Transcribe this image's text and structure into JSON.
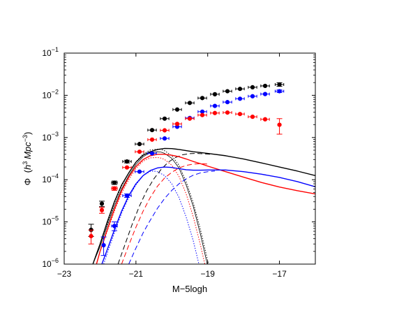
{
  "chart_data": {
    "type": "scatter",
    "xlabel": "M−5logh",
    "ylabel": {
      "text": "Φ",
      "open": "(",
      "h": "h",
      "h_exp": "3",
      "mpc": "Mpc",
      "mpc_exp": "−3",
      "close": ")"
    },
    "xlim": [
      -23,
      -16
    ],
    "ylim": [
      1e-06,
      0.1
    ],
    "yscale": "log",
    "grid": false,
    "legend": "none",
    "x_ticks": [
      {
        "value": -23,
        "label": "−23"
      },
      {
        "value": -21,
        "label": "−21"
      },
      {
        "value": -19,
        "label": "−19"
      },
      {
        "value": -17,
        "label": "−17"
      }
    ],
    "y_ticks": [
      {
        "value": 1e-06,
        "base": "10",
        "exp": "−6"
      },
      {
        "value": 1e-05,
        "base": "10",
        "exp": "−5"
      },
      {
        "value": 0.0001,
        "base": "10",
        "exp": "−4"
      },
      {
        "value": 0.001,
        "base": "10",
        "exp": "−3"
      },
      {
        "value": 0.01,
        "base": "10",
        "exp": "−2"
      },
      {
        "value": 0.1,
        "base": "10",
        "exp": "−1"
      }
    ],
    "point_series": [
      {
        "color": "#000000",
        "points": [
          {
            "x": -22.25,
            "y": 6.5e-06,
            "ylo": 4.5e-06,
            "yhi": 8.8e-06,
            "xerr": 0
          },
          {
            "x": -21.95,
            "y": 2.7e-05,
            "ylo": 2.3e-05,
            "yhi": 3.1e-05,
            "xerr": 0
          },
          {
            "x": -21.6,
            "y": 8.5e-05,
            "ylo": 7.7e-05,
            "yhi": 9.3e-05,
            "xerr": 0.08
          },
          {
            "x": -21.25,
            "y": 0.00027,
            "ylo": 0.00025,
            "yhi": 0.00029,
            "xerr": 0.12
          },
          {
            "x": -20.9,
            "y": 0.0007,
            "ylo": 0.00067,
            "yhi": 0.00073,
            "xerr": 0.12
          },
          {
            "x": -20.55,
            "y": 0.0015,
            "ylo": 0.00146,
            "yhi": 0.00154,
            "xerr": 0.12
          },
          {
            "x": -20.2,
            "y": 0.0028,
            "ylo": 0.0027,
            "yhi": 0.0029,
            "xerr": 0.12
          },
          {
            "x": -19.85,
            "y": 0.0046,
            "ylo": 0.0045,
            "yhi": 0.0047,
            "xerr": 0.12
          },
          {
            "x": -19.5,
            "y": 0.0066,
            "ylo": 0.0065,
            "yhi": 0.0067,
            "xerr": 0.12
          },
          {
            "x": -19.15,
            "y": 0.0086,
            "ylo": 0.0085,
            "yhi": 0.0087,
            "xerr": 0.12
          },
          {
            "x": -18.8,
            "y": 0.0106,
            "ylo": 0.0105,
            "yhi": 0.0107,
            "xerr": 0.12
          },
          {
            "x": -18.45,
            "y": 0.0125,
            "ylo": 0.0124,
            "yhi": 0.0126,
            "xerr": 0.12
          },
          {
            "x": -18.1,
            "y": 0.0142,
            "ylo": 0.014,
            "yhi": 0.0144,
            "xerr": 0.12
          },
          {
            "x": -17.75,
            "y": 0.0155,
            "ylo": 0.0152,
            "yhi": 0.0158,
            "xerr": 0.12
          },
          {
            "x": -17.4,
            "y": 0.0167,
            "ylo": 0.0163,
            "yhi": 0.0171,
            "xerr": 0.12
          },
          {
            "x": -17.0,
            "y": 0.018,
            "ylo": 0.0163,
            "yhi": 0.0199,
            "xerr": 0.12
          }
        ]
      },
      {
        "color": "#0000ff",
        "points": [
          {
            "x": -21.9,
            "y": 2.8e-06,
            "ylo": 1.6e-06,
            "yhi": 4.4e-06,
            "xerr": 0
          },
          {
            "x": -21.6,
            "y": 8e-06,
            "ylo": 6.2e-06,
            "yhi": 1e-05,
            "xerr": 0.08
          },
          {
            "x": -21.25,
            "y": 4.2e-05,
            "ylo": 3.8e-05,
            "yhi": 4.6e-05,
            "xerr": 0.12
          },
          {
            "x": -20.9,
            "y": 0.000155,
            "ylo": 0.000148,
            "yhi": 0.000162,
            "xerr": 0.12
          },
          {
            "x": -20.55,
            "y": 0.00042,
            "ylo": 0.000405,
            "yhi": 0.000435,
            "xerr": 0.12
          },
          {
            "x": -20.2,
            "y": 0.00095,
            "ylo": 0.00092,
            "yhi": 0.00098,
            "xerr": 0.12
          },
          {
            "x": -19.85,
            "y": 0.0018,
            "ylo": 0.00175,
            "yhi": 0.00185,
            "xerr": 0.12
          },
          {
            "x": -19.5,
            "y": 0.0029,
            "ylo": 0.00284,
            "yhi": 0.00296,
            "xerr": 0.12
          },
          {
            "x": -19.15,
            "y": 0.0041,
            "ylo": 0.00403,
            "yhi": 0.00417,
            "xerr": 0.12
          },
          {
            "x": -18.8,
            "y": 0.0056,
            "ylo": 0.0055,
            "yhi": 0.0057,
            "xerr": 0.12
          },
          {
            "x": -18.45,
            "y": 0.0069,
            "ylo": 0.0068,
            "yhi": 0.007,
            "xerr": 0.12
          },
          {
            "x": -18.1,
            "y": 0.0083,
            "ylo": 0.0082,
            "yhi": 0.0084,
            "xerr": 0.12
          },
          {
            "x": -17.75,
            "y": 0.0095,
            "ylo": 0.0093,
            "yhi": 0.0097,
            "xerr": 0.12
          },
          {
            "x": -17.4,
            "y": 0.0107,
            "ylo": 0.0104,
            "yhi": 0.011,
            "xerr": 0.12
          },
          {
            "x": -17.0,
            "y": 0.0125,
            "ylo": 0.0116,
            "yhi": 0.0134,
            "xerr": 0.12
          }
        ]
      },
      {
        "color": "#ff0000",
        "points": [
          {
            "x": -22.25,
            "y": 4.6e-06,
            "ylo": 3e-06,
            "yhi": 6.4e-06,
            "xerr": 0
          },
          {
            "x": -21.95,
            "y": 1.9e-05,
            "ylo": 1.6e-05,
            "yhi": 2.2e-05,
            "xerr": 0
          },
          {
            "x": -21.6,
            "y": 6.2e-05,
            "ylo": 5.6e-05,
            "yhi": 6.8e-05,
            "xerr": 0.08
          },
          {
            "x": -21.25,
            "y": 0.000195,
            "ylo": 0.000185,
            "yhi": 0.000205,
            "xerr": 0.12
          },
          {
            "x": -20.9,
            "y": 0.00046,
            "ylo": 0.00044,
            "yhi": 0.00048,
            "xerr": 0.12
          },
          {
            "x": -20.55,
            "y": 0.00089,
            "ylo": 0.00086,
            "yhi": 0.00092,
            "xerr": 0.12
          },
          {
            "x": -20.2,
            "y": 0.00148,
            "ylo": 0.00144,
            "yhi": 0.00152,
            "xerr": 0.12
          },
          {
            "x": -19.85,
            "y": 0.0021,
            "ylo": 0.00205,
            "yhi": 0.00215,
            "xerr": 0.12
          },
          {
            "x": -19.5,
            "y": 0.0028,
            "ylo": 0.00274,
            "yhi": 0.00286,
            "xerr": 0.12
          },
          {
            "x": -19.15,
            "y": 0.0034,
            "ylo": 0.00333,
            "yhi": 0.00347,
            "xerr": 0.12
          },
          {
            "x": -18.8,
            "y": 0.0038,
            "ylo": 0.00372,
            "yhi": 0.00388,
            "xerr": 0.12
          },
          {
            "x": -18.45,
            "y": 0.0039,
            "ylo": 0.00381,
            "yhi": 0.00399,
            "xerr": 0.12
          },
          {
            "x": -18.1,
            "y": 0.0036,
            "ylo": 0.0035,
            "yhi": 0.0037,
            "xerr": 0.12
          },
          {
            "x": -17.75,
            "y": 0.0031,
            "ylo": 0.003,
            "yhi": 0.0032,
            "xerr": 0.12
          },
          {
            "x": -17.4,
            "y": 0.0027,
            "ylo": 0.0026,
            "yhi": 0.0028,
            "xerr": 0.12
          },
          {
            "x": -17.0,
            "y": 0.002,
            "ylo": 0.0012,
            "yhi": 0.0028,
            "xerr": 0
          }
        ]
      }
    ],
    "curve_series": [
      {
        "color": "#000000",
        "dash": "solid",
        "width": 1.4,
        "x": [
          -22.2,
          -22.0,
          -21.8,
          -21.6,
          -21.4,
          -21.2,
          -21.0,
          -20.8,
          -20.6,
          -20.4,
          -20.2,
          -20.0,
          -19.8,
          -19.6,
          -19.4,
          -19.2,
          -19.0,
          -18.5,
          -18.0,
          -17.5,
          -17.0,
          -16.5,
          -16.0
        ],
        "y": [
          1e-06,
          3e-06,
          1e-05,
          3e-05,
          7.5e-05,
          0.000145,
          0.00026,
          0.00038,
          0.00046,
          0.00052,
          0.00055,
          0.000545,
          0.00052,
          0.00049,
          0.00046,
          0.00044,
          0.00042,
          0.00037,
          0.00031,
          0.00025,
          0.0002,
          0.00016,
          0.000125
        ]
      },
      {
        "color": "#000000",
        "dash": "dotted",
        "width": 1.0,
        "x": [
          -22.2,
          -22.0,
          -21.8,
          -21.6,
          -21.4,
          -21.2,
          -21.0,
          -20.8,
          -20.6,
          -20.4,
          -20.3,
          -20.2,
          -20.0,
          -19.8,
          -19.6,
          -19.4,
          -19.2,
          -19.0,
          -18.9
        ],
        "y": [
          1e-06,
          3e-06,
          9e-06,
          2.8e-05,
          7e-05,
          0.000145,
          0.000265,
          0.000405,
          0.000505,
          0.00053,
          0.00052,
          0.000485,
          0.00037,
          0.00022,
          9e-05,
          2.8e-05,
          6.5e-06,
          1.2e-06,
          5e-07
        ]
      },
      {
        "color": "#000000",
        "dash": "solid",
        "width": 0.8,
        "x": [
          -22.2,
          -22.0,
          -21.8,
          -21.6,
          -21.4,
          -21.2,
          -21.0,
          -20.8,
          -20.6,
          -20.4,
          -20.3,
          -20.2,
          -20.0,
          -19.8,
          -19.6,
          -19.4,
          -19.2,
          -19.0,
          -18.9
        ],
        "y": [
          1e-06,
          2.6e-06,
          8e-06,
          2.4e-05,
          6e-05,
          0.000125,
          0.00023,
          0.00035,
          0.00044,
          0.00046,
          0.00045,
          0.00042,
          0.00032,
          0.00019,
          7.5e-05,
          2.3e-05,
          5e-06,
          9e-07,
          4e-07
        ]
      },
      {
        "color": "#000000",
        "dash": "dashed",
        "width": 1.0,
        "x": [
          -21.5,
          -21.3,
          -21.1,
          -20.9,
          -20.7,
          -20.5,
          -20.3,
          -20.1,
          -19.9,
          -19.7,
          -19.5,
          -19.3,
          -19.1,
          -18.9
        ],
        "y": [
          1e-06,
          3e-06,
          9e-06,
          2.4e-05,
          5.5e-05,
          0.000105,
          0.000175,
          0.00026,
          0.000335,
          0.00039,
          0.000415,
          0.00042,
          0.00041,
          0.0004
        ]
      },
      {
        "color": "#ff0000",
        "dash": "solid",
        "width": 1.4,
        "x": [
          -22.1,
          -22.0,
          -21.8,
          -21.6,
          -21.4,
          -21.2,
          -21.0,
          -20.8,
          -20.6,
          -20.4,
          -20.2,
          -20.0,
          -19.8,
          -19.6,
          -19.4,
          -19.2,
          -19.0,
          -18.5,
          -18.0,
          -17.5,
          -17.0,
          -16.5,
          -16.0
        ],
        "y": [
          1e-06,
          2e-06,
          6.5e-06,
          2e-05,
          5.5e-05,
          0.000115,
          0.000205,
          0.0003,
          0.00037,
          0.0004,
          0.0004,
          0.00038,
          0.00035,
          0.00031,
          0.00027,
          0.00024,
          0.00021,
          0.000155,
          0.000115,
          8.6e-05,
          6.7e-05,
          5.5e-05,
          4.6e-05
        ]
      },
      {
        "color": "#ff0000",
        "dash": "dotted",
        "width": 1.0,
        "x": [
          -22.1,
          -22.0,
          -21.8,
          -21.6,
          -21.4,
          -21.2,
          -21.0,
          -20.8,
          -20.6,
          -20.4,
          -20.3,
          -20.2,
          -20.0,
          -19.8,
          -19.6,
          -19.4,
          -19.2,
          -19.0,
          -18.9
        ],
        "y": [
          1e-06,
          2e-06,
          6e-06,
          1.8e-05,
          4.8e-05,
          0.0001,
          0.000185,
          0.000275,
          0.00033,
          0.000335,
          0.000325,
          0.0003,
          0.00022,
          0.00012,
          4.6e-05,
          1.3e-05,
          2.8e-06,
          5e-07,
          2e-07
        ]
      },
      {
        "color": "#ff0000",
        "dash": "dashed",
        "width": 1.0,
        "x": [
          -21.4,
          -21.2,
          -21.0,
          -20.8,
          -20.6,
          -20.4,
          -20.2,
          -20.0,
          -19.8,
          -19.6,
          -19.4,
          -19.2,
          -19.0
        ],
        "y": [
          1e-06,
          2.8e-06,
          7.5e-06,
          1.8e-05,
          3.8e-05,
          7e-05,
          0.00011,
          0.00015,
          0.00019,
          0.000218,
          0.000235,
          0.00024,
          0.000235
        ]
      },
      {
        "color": "#0000ff",
        "dash": "solid",
        "width": 1.4,
        "x": [
          -21.95,
          -21.8,
          -21.6,
          -21.4,
          -21.2,
          -21.0,
          -20.8,
          -20.6,
          -20.4,
          -20.2,
          -20.0,
          -19.8,
          -19.6,
          -19.4,
          -19.2,
          -19.0,
          -18.5,
          -18.0,
          -17.5,
          -17.0,
          -16.5,
          -16.0
        ],
        "y": [
          1e-06,
          2.2e-06,
          6.5e-06,
          1.8e-05,
          4.2e-05,
          8e-05,
          0.000125,
          0.000165,
          0.00019,
          0.0002,
          0.000195,
          0.000182,
          0.000172,
          0.000168,
          0.000168,
          0.00017,
          0.00017,
          0.000155,
          0.000135,
          0.000113,
          9e-05,
          6.8e-05
        ]
      },
      {
        "color": "#0000ff",
        "dash": "dotted",
        "width": 1.0,
        "x": [
          -21.9,
          -21.8,
          -21.6,
          -21.4,
          -21.2,
          -21.0,
          -20.8,
          -20.6,
          -20.5,
          -20.4,
          -20.2,
          -20.0,
          -19.8,
          -19.6,
          -19.4,
          -19.2,
          -19.05,
          -18.95
        ],
        "y": [
          1e-06,
          1.8e-06,
          5.5e-06,
          1.6e-05,
          3.8e-05,
          7.5e-05,
          0.000125,
          0.000158,
          0.00016,
          0.000155,
          0.000125,
          8e-05,
          3.8e-05,
          1.3e-05,
          3.5e-06,
          7e-07,
          2.5e-07,
          1e-07
        ]
      },
      {
        "color": "#0000ff",
        "dash": "dashed",
        "width": 1.0,
        "x": [
          -21.2,
          -21.0,
          -20.8,
          -20.6,
          -20.4,
          -20.2,
          -20.0,
          -19.8,
          -19.6,
          -19.4,
          -19.2,
          -19.0,
          -18.8
        ],
        "y": [
          1e-06,
          2.4e-06,
          5.5e-06,
          1.1e-05,
          2.1e-05,
          3.6e-05,
          5.6e-05,
          8e-05,
          0.000105,
          0.000128,
          0.000145,
          0.000155,
          0.00016
        ]
      }
    ]
  }
}
